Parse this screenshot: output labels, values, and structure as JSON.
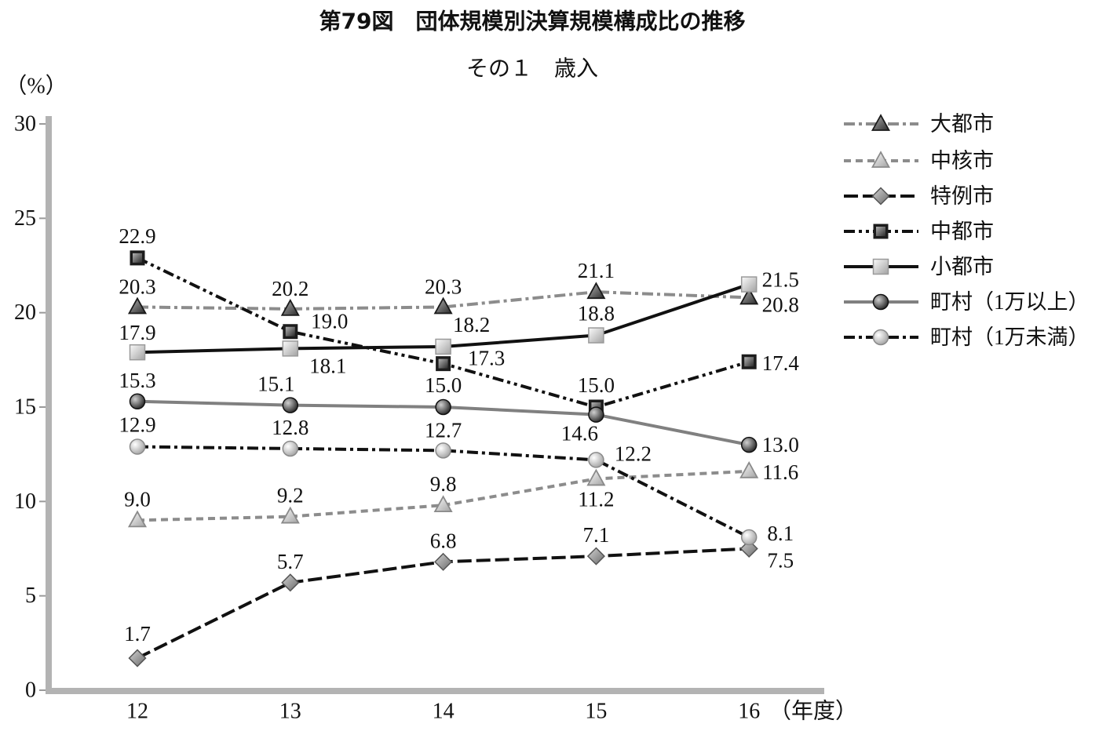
{
  "chart_data": {
    "type": "line",
    "title": "第79図　団体規模別決算規模構成比の推移",
    "subtitle": "その１　歳入",
    "ylabel": "（%）",
    "xlabel": "（年度）",
    "categories": [
      "12",
      "13",
      "14",
      "15",
      "16"
    ],
    "ylim": [
      0,
      30
    ],
    "yticks": [
      0,
      5,
      10,
      15,
      20,
      25,
      30
    ],
    "grid": false,
    "legend": "right",
    "series": [
      {
        "name": "大都市",
        "values": [
          20.3,
          20.2,
          20.3,
          21.1,
          20.8
        ],
        "color": "#8c8c8c",
        "line": "dash-dot",
        "marker": "triangle-dark"
      },
      {
        "name": "中核市",
        "values": [
          9.0,
          9.2,
          9.8,
          11.2,
          11.6
        ],
        "color": "#8c8c8c",
        "line": "dashed",
        "marker": "triangle-light"
      },
      {
        "name": "特例市",
        "values": [
          1.7,
          5.7,
          6.8,
          7.1,
          7.5
        ],
        "color": "#111111",
        "line": "long-dash",
        "marker": "diamond-gray"
      },
      {
        "name": "中都市",
        "values": [
          22.9,
          19.0,
          17.3,
          15.0,
          17.4
        ],
        "color": "#111111",
        "line": "dash-dot-dot",
        "marker": "square-dark"
      },
      {
        "name": "小都市",
        "values": [
          17.9,
          18.1,
          18.2,
          18.8,
          21.5
        ],
        "color": "#111111",
        "line": "solid",
        "marker": "square-light"
      },
      {
        "name": "町村（1万以上）",
        "values": [
          15.3,
          15.1,
          15.0,
          14.6,
          13.0
        ],
        "color": "#808080",
        "line": "solid",
        "marker": "circle-dark"
      },
      {
        "name": "町村（1万未満）",
        "values": [
          12.9,
          12.8,
          12.7,
          12.2,
          8.1
        ],
        "color": "#111111",
        "line": "dash-dot",
        "marker": "circle-light"
      }
    ]
  }
}
